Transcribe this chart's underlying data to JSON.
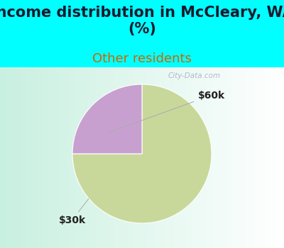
{
  "title": "Income distribution in McCleary, WA\n(%)",
  "subtitle": "Other residents",
  "title_fontsize": 15,
  "subtitle_fontsize": 13,
  "title_color": "#1a1a2e",
  "subtitle_color": "#cc6600",
  "top_bg_color": "#00FFFF",
  "chart_bg_gradient_left": "#c8f0e0",
  "chart_bg_gradient_right": "#ffffff",
  "slices": [
    75.0,
    25.0
  ],
  "slice_colors": [
    "#c8d89a",
    "#c8a0d0"
  ],
  "labels": [
    "$30k",
    "$60k"
  ],
  "label_color": "#222222",
  "label_fontsize": 10,
  "startangle": 90,
  "watermark": "City-Data.com",
  "watermark_color": "#aaaacc",
  "cyan_border": "#00FFFF"
}
